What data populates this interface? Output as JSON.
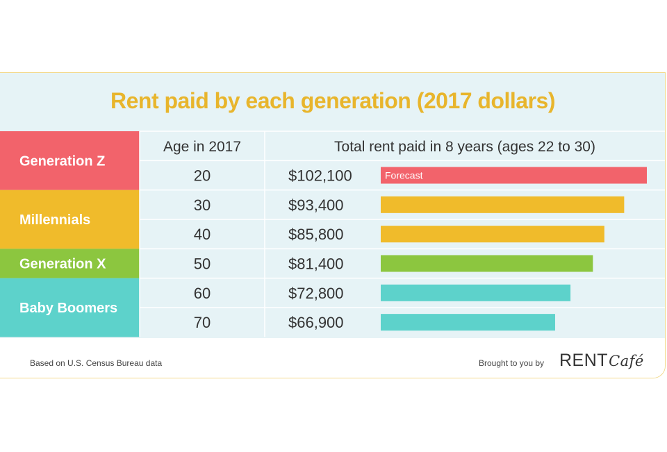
{
  "title": "Rent paid by each generation (2017 dollars)",
  "headers": {
    "age": "Age in 2017",
    "rent": "Total rent paid in 8 years (ages 22 to 30)"
  },
  "footer": {
    "source": "Based on U.S. Census Bureau data",
    "brought_by": "Brought to you by",
    "logo_rent": "RENT",
    "logo_cafe": "Café"
  },
  "colors": {
    "generation_z": "#f2636b",
    "millennials": "#f0bb2b",
    "generation_x": "#8cc63f",
    "baby_boomers": "#5dd2cb",
    "title": "#e8b52c"
  },
  "chart_data": {
    "type": "bar",
    "orientation": "horizontal",
    "title": "Rent paid by each generation (2017 dollars)",
    "xlabel": "Total rent paid in 8 years (ages 22 to 30)",
    "ylabel": "Age in 2017",
    "categories": [
      "20",
      "30",
      "40",
      "50",
      "60",
      "70"
    ],
    "values": [
      102100,
      93400,
      85800,
      81400,
      72800,
      66900
    ],
    "value_labels": [
      "$102,100",
      "$93,400",
      "$85,800",
      "$81,400",
      "$72,800",
      "$66,900"
    ],
    "generations": [
      {
        "name": "Generation Z",
        "ages": [
          "20"
        ],
        "color": "#f2636b"
      },
      {
        "name": "Millennials",
        "ages": [
          "30",
          "40"
        ],
        "color": "#f0bb2b"
      },
      {
        "name": "Generation X",
        "ages": [
          "50"
        ],
        "color": "#8cc63f"
      },
      {
        "name": "Baby Boomers",
        "ages": [
          "60",
          "70"
        ],
        "color": "#5dd2cb"
      }
    ],
    "annotations": [
      {
        "row": "20",
        "text": "Forecast"
      }
    ],
    "xlim": [
      0,
      102100
    ]
  }
}
